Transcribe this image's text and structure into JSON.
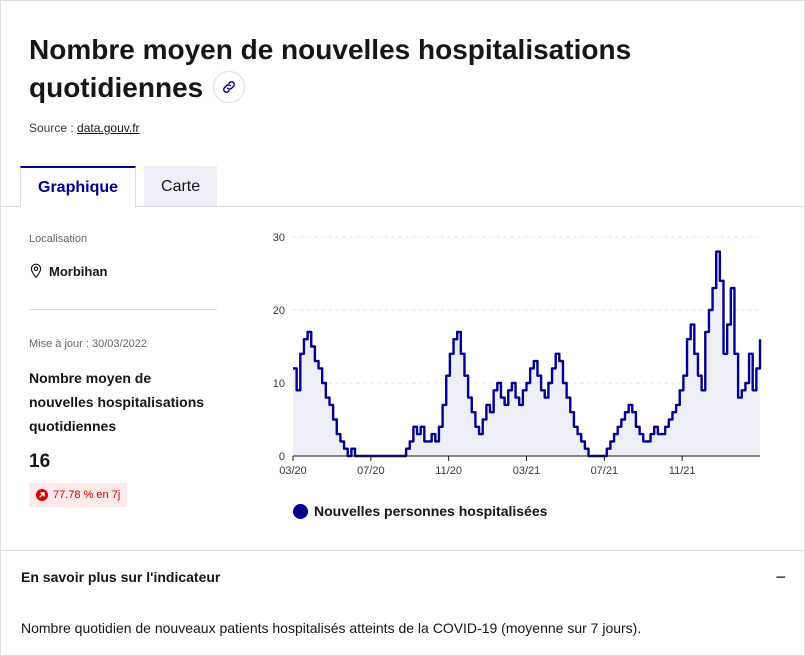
{
  "title": "Nombre moyen de nouvelles hospitalisations quotidiennes",
  "source": {
    "label": "Source :",
    "link": "data.gouv.fr"
  },
  "tabs": [
    {
      "label": "Graphique"
    },
    {
      "label": "Carte"
    }
  ],
  "sidebar": {
    "localisation_label": "Localisation",
    "localisation_value": "Morbihan",
    "update_label": "Mise à jour : 30/03/2022",
    "indicator_title": "Nombre moyen de nouvelles hospitalisations quotidiennes",
    "value": "16",
    "trend": "77.78 % en 7j"
  },
  "colors": {
    "accent": "#000091",
    "area_fill": "#eeeef7",
    "trend_bg": "#ffe9e9",
    "trend_text": "#ce0500"
  },
  "chart_data": {
    "type": "area",
    "ylim": [
      0,
      30
    ],
    "yticks": [
      "0",
      "10",
      "20",
      "30"
    ],
    "xticks": [
      "03/20",
      "07/20",
      "11/20",
      "03/21",
      "07/21",
      "11/21"
    ],
    "x_range": [
      "2020-03",
      "2022-03"
    ],
    "series": [
      {
        "name": "Nouvelles personnes hospitalisées",
        "values": [
          12,
          9,
          14,
          16,
          17,
          15,
          13,
          12,
          10,
          8,
          7,
          5,
          3,
          2,
          1,
          0,
          1,
          0,
          0,
          0,
          0,
          0,
          0,
          0,
          0,
          0,
          0,
          0,
          0,
          0,
          0,
          1,
          2,
          4,
          3,
          4,
          2,
          2,
          3,
          2,
          4,
          7,
          11,
          14,
          16,
          17,
          14,
          11,
          8,
          6,
          4,
          3,
          5,
          7,
          6,
          9,
          10,
          8,
          7,
          9,
          10,
          8,
          7,
          9,
          10,
          12,
          13,
          11,
          9,
          8,
          10,
          12,
          14,
          13,
          10,
          8,
          6,
          4,
          3,
          2,
          1,
          0,
          0,
          0,
          0,
          0,
          1,
          2,
          3,
          4,
          5,
          6,
          7,
          6,
          4,
          3,
          2,
          2,
          3,
          4,
          3,
          3,
          4,
          5,
          6,
          7,
          9,
          11,
          16,
          18,
          14,
          11,
          9,
          17,
          20,
          23,
          28,
          24,
          14,
          18,
          23,
          14,
          8,
          9,
          10,
          14,
          9,
          12,
          16
        ]
      }
    ],
    "grid": true,
    "legend": "bottom"
  },
  "accordion": {
    "title": "En savoir plus sur l'indicateur",
    "toggle": "−",
    "body": "Nombre quotidien de nouveaux patients hospitalisés atteints de la COVID-19 (moyenne sur 7 jours)."
  }
}
